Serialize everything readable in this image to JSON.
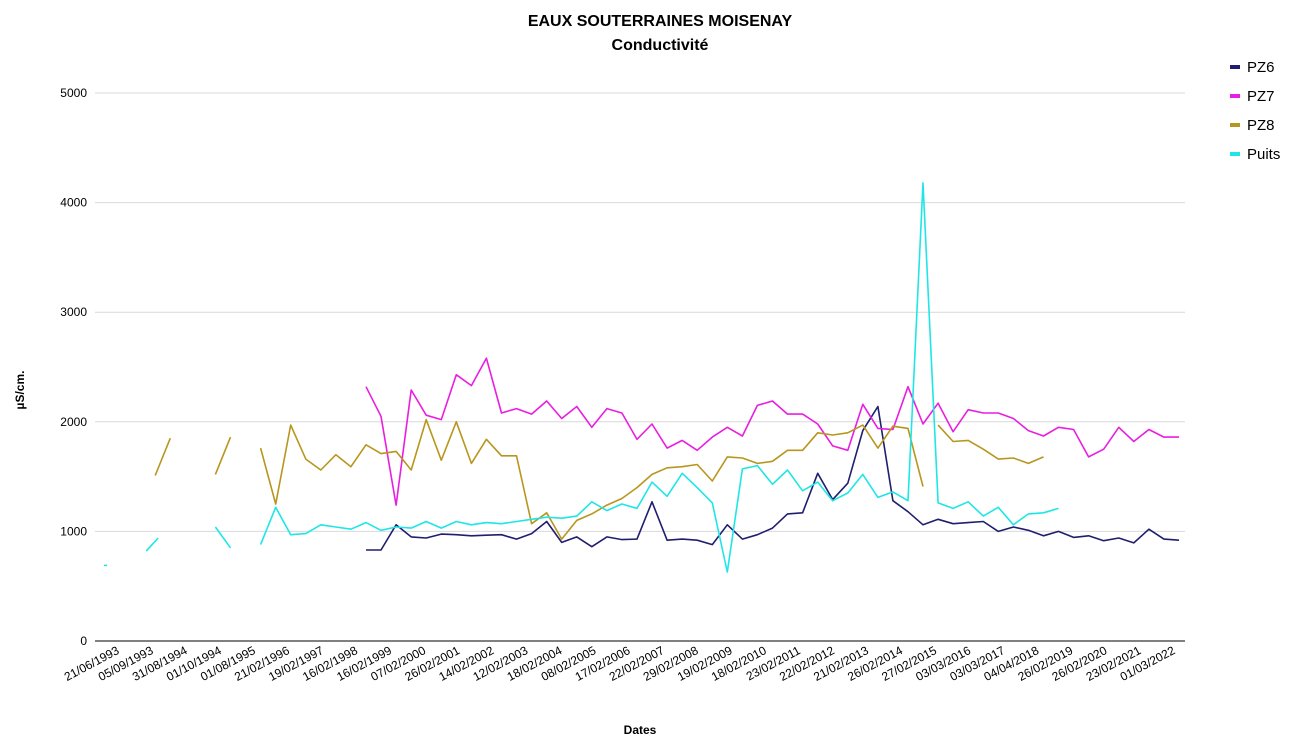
{
  "chart_data": {
    "type": "line",
    "title": "EAUX SOUTERRAINES MOISENAY",
    "subtitle": "Conductivité",
    "xlabel": "Dates",
    "ylabel": "µS/cm.",
    "ylim": [
      0,
      5000
    ],
    "yticks": [
      "0",
      "1000",
      "2000",
      "3000",
      "4000",
      "5000"
    ],
    "grid": true,
    "legend_position": "top-right",
    "categories": [
      "21/06/1993",
      "05/09/1993",
      "31/08/1994",
      "01/10/1994",
      "01/08/1995",
      "21/02/1996",
      "19/02/1997",
      "16/02/1998",
      "16/02/1999",
      "07/02/2000",
      "26/02/2001",
      "14/02/2002",
      "12/02/2003",
      "18/02/2004",
      "08/02/2005",
      "17/02/2006",
      "22/02/2007",
      "29/02/2008",
      "19/02/2009",
      "18/02/2010",
      "23/02/2011",
      "22/02/2012",
      "21/02/2013",
      "26/02/2014",
      "27/02/2015",
      "03/03/2016",
      "03/03/2017",
      "04/04/2018",
      "26/02/2019",
      "26/02/2020",
      "23/02/2021",
      "01/03/2022"
    ],
    "series": [
      {
        "name": "PZ6",
        "color": "#1f1f6e",
        "points": [
          [
            9.0,
            830
          ],
          [
            9.5,
            830
          ],
          [
            10.0,
            1060
          ],
          [
            10.5,
            950
          ],
          [
            11.0,
            940
          ],
          [
            11.5,
            975
          ],
          [
            12.0,
            970
          ],
          [
            12.5,
            960
          ],
          [
            13.0,
            965
          ],
          [
            13.5,
            970
          ],
          [
            14.0,
            930
          ],
          [
            14.5,
            980
          ],
          [
            15.0,
            1090
          ],
          [
            15.5,
            900
          ],
          [
            16.0,
            950
          ],
          [
            16.5,
            860
          ],
          [
            17.0,
            950
          ],
          [
            17.5,
            925
          ],
          [
            18.0,
            930
          ],
          [
            18.5,
            1270
          ],
          [
            19.0,
            920
          ],
          [
            19.5,
            930
          ],
          [
            20.0,
            920
          ],
          [
            20.5,
            880
          ],
          [
            21.0,
            1060
          ],
          [
            21.5,
            930
          ],
          [
            22.0,
            970
          ],
          [
            22.5,
            1030
          ],
          [
            23.0,
            1160
          ],
          [
            23.5,
            1170
          ],
          [
            24.0,
            1530
          ],
          [
            24.5,
            1290
          ],
          [
            25.0,
            1440
          ],
          [
            25.5,
            1920
          ],
          [
            26.0,
            2140
          ],
          [
            26.5,
            1280
          ],
          [
            27.0,
            1180
          ],
          [
            27.5,
            1060
          ],
          [
            28.0,
            1110
          ],
          [
            28.5,
            1070
          ],
          [
            29.0,
            1080
          ],
          [
            29.5,
            1090
          ],
          [
            30.0,
            1000
          ],
          [
            30.5,
            1040
          ],
          [
            31.0,
            1010
          ],
          [
            31.5,
            960
          ],
          [
            32.0,
            1000
          ],
          [
            32.5,
            945
          ],
          [
            33.0,
            960
          ],
          [
            33.5,
            915
          ],
          [
            34.0,
            940
          ],
          [
            34.5,
            895
          ],
          [
            35.0,
            1020
          ],
          [
            35.5,
            930
          ],
          [
            36.0,
            920
          ]
        ]
      },
      {
        "name": "PZ7",
        "color": "#e91ee0",
        "points": [
          [
            9.0,
            2320
          ],
          [
            9.5,
            2050
          ],
          [
            10.0,
            1240
          ],
          [
            10.5,
            2290
          ],
          [
            11.0,
            2060
          ],
          [
            11.5,
            2020
          ],
          [
            12.0,
            2430
          ],
          [
            12.5,
            2330
          ],
          [
            13.0,
            2580
          ],
          [
            13.5,
            2080
          ],
          [
            14.0,
            2120
          ],
          [
            14.5,
            2070
          ],
          [
            15.0,
            2190
          ],
          [
            15.5,
            2030
          ],
          [
            16.0,
            2140
          ],
          [
            16.5,
            1950
          ],
          [
            17.0,
            2120
          ],
          [
            17.5,
            2080
          ],
          [
            18.0,
            1840
          ],
          [
            18.5,
            1980
          ],
          [
            19.0,
            1760
          ],
          [
            19.5,
            1830
          ],
          [
            20.0,
            1740
          ],
          [
            20.5,
            1860
          ],
          [
            21.0,
            1950
          ],
          [
            21.5,
            1870
          ],
          [
            22.0,
            2150
          ],
          [
            22.5,
            2190
          ],
          [
            23.0,
            2070
          ],
          [
            23.5,
            2070
          ],
          [
            24.0,
            1980
          ],
          [
            24.5,
            1780
          ],
          [
            25.0,
            1740
          ],
          [
            25.5,
            2160
          ],
          [
            26.0,
            1940
          ],
          [
            26.5,
            1930
          ],
          [
            27.0,
            2320
          ],
          [
            27.5,
            1980
          ],
          [
            28.0,
            2170
          ],
          [
            28.5,
            1910
          ],
          [
            29.0,
            2110
          ],
          [
            29.5,
            2080
          ],
          [
            30.0,
            2080
          ],
          [
            30.5,
            2030
          ],
          [
            31.0,
            1920
          ],
          [
            31.5,
            1870
          ],
          [
            32.0,
            1950
          ],
          [
            32.5,
            1930
          ],
          [
            33.0,
            1680
          ],
          [
            33.5,
            1750
          ],
          [
            34.0,
            1950
          ],
          [
            34.5,
            1820
          ],
          [
            35.0,
            1930
          ],
          [
            35.5,
            1860
          ],
          [
            36.0,
            1860
          ]
        ]
      },
      {
        "name": "PZ8",
        "color": "#b8961e",
        "points": [
          [
            2.0,
            1510
          ],
          [
            2.5,
            1850
          ],
          [
            null,
            null
          ],
          [
            4.0,
            1520
          ],
          [
            4.5,
            1860
          ],
          [
            null,
            null
          ],
          [
            5.5,
            1760
          ],
          [
            6.0,
            1250
          ],
          [
            6.5,
            1970
          ],
          [
            7.0,
            1660
          ],
          [
            7.5,
            1560
          ],
          [
            8.0,
            1700
          ],
          [
            8.5,
            1590
          ],
          [
            9.0,
            1790
          ],
          [
            9.5,
            1710
          ],
          [
            10.0,
            1730
          ],
          [
            10.5,
            1560
          ],
          [
            11.0,
            2020
          ],
          [
            11.5,
            1650
          ],
          [
            12.0,
            2000
          ],
          [
            12.5,
            1620
          ],
          [
            13.0,
            1840
          ],
          [
            13.5,
            1690
          ],
          [
            14.0,
            1690
          ],
          [
            14.5,
            1070
          ],
          [
            15.0,
            1170
          ],
          [
            15.5,
            930
          ],
          [
            16.0,
            1100
          ],
          [
            16.5,
            1160
          ],
          [
            17.0,
            1240
          ],
          [
            17.5,
            1300
          ],
          [
            18.0,
            1400
          ],
          [
            18.5,
            1520
          ],
          [
            19.0,
            1580
          ],
          [
            19.5,
            1590
          ],
          [
            20.0,
            1610
          ],
          [
            20.5,
            1460
          ],
          [
            21.0,
            1680
          ],
          [
            21.5,
            1670
          ],
          [
            22.0,
            1620
          ],
          [
            22.5,
            1640
          ],
          [
            23.0,
            1740
          ],
          [
            23.5,
            1740
          ],
          [
            24.0,
            1900
          ],
          [
            24.5,
            1880
          ],
          [
            25.0,
            1900
          ],
          [
            25.5,
            1970
          ],
          [
            26.0,
            1760
          ],
          [
            26.5,
            1960
          ],
          [
            27.0,
            1940
          ],
          [
            27.5,
            1410
          ],
          [
            null,
            null
          ],
          [
            28.0,
            1970
          ],
          [
            28.5,
            1820
          ],
          [
            29.0,
            1830
          ],
          [
            29.5,
            1750
          ],
          [
            30.0,
            1660
          ],
          [
            30.5,
            1670
          ],
          [
            31.0,
            1620
          ],
          [
            31.5,
            1680
          ]
        ]
      },
      {
        "name": "Puits",
        "color": "#1fe6e6",
        "points": [
          [
            0.3,
            690
          ],
          [
            0.4,
            690
          ],
          [
            null,
            null
          ],
          [
            1.7,
            820
          ],
          [
            2.1,
            940
          ],
          [
            null,
            null
          ],
          [
            4.0,
            1040
          ],
          [
            4.5,
            850
          ],
          [
            null,
            null
          ],
          [
            5.5,
            880
          ],
          [
            6.0,
            1220
          ],
          [
            6.5,
            970
          ],
          [
            7.0,
            980
          ],
          [
            7.5,
            1060
          ],
          [
            8.0,
            1040
          ],
          [
            8.5,
            1020
          ],
          [
            9.0,
            1080
          ],
          [
            9.5,
            1010
          ],
          [
            10.0,
            1040
          ],
          [
            10.5,
            1030
          ],
          [
            11.0,
            1090
          ],
          [
            11.5,
            1030
          ],
          [
            12.0,
            1090
          ],
          [
            12.5,
            1060
          ],
          [
            13.0,
            1080
          ],
          [
            13.5,
            1070
          ],
          [
            14.0,
            1090
          ],
          [
            14.5,
            1110
          ],
          [
            15.0,
            1130
          ],
          [
            15.5,
            1120
          ],
          [
            16.0,
            1140
          ],
          [
            16.5,
            1270
          ],
          [
            17.0,
            1190
          ],
          [
            17.5,
            1250
          ],
          [
            18.0,
            1210
          ],
          [
            18.5,
            1450
          ],
          [
            19.0,
            1320
          ],
          [
            19.5,
            1530
          ],
          [
            20.0,
            1400
          ],
          [
            20.5,
            1260
          ],
          [
            21.0,
            630
          ],
          [
            21.5,
            1570
          ],
          [
            22.0,
            1600
          ],
          [
            22.5,
            1430
          ],
          [
            23.0,
            1560
          ],
          [
            23.5,
            1370
          ],
          [
            24.0,
            1450
          ],
          [
            24.5,
            1280
          ],
          [
            25.0,
            1350
          ],
          [
            25.5,
            1520
          ],
          [
            26.0,
            1310
          ],
          [
            26.5,
            1360
          ],
          [
            27.0,
            1280
          ],
          [
            27.5,
            4180
          ],
          [
            28.0,
            1260
          ],
          [
            28.5,
            1210
          ],
          [
            29.0,
            1270
          ],
          [
            29.5,
            1140
          ],
          [
            30.0,
            1220
          ],
          [
            30.5,
            1060
          ],
          [
            31.0,
            1160
          ],
          [
            31.5,
            1170
          ],
          [
            32.0,
            1210
          ]
        ]
      }
    ]
  }
}
